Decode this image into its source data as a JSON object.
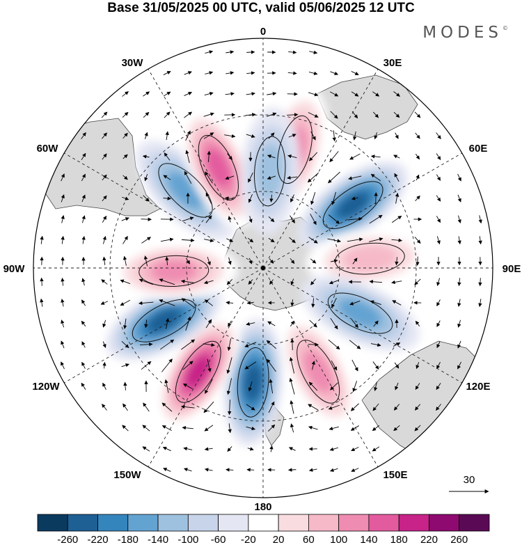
{
  "title": "Base 31/05/2025 00 UTC, valid 05/06/2025 12 UTC",
  "logo": "MODES",
  "logo_mark": "©",
  "longitude_labels": [
    {
      "key": "0",
      "text": "0"
    },
    {
      "key": "30E",
      "text": "30E"
    },
    {
      "key": "60E",
      "text": "60E"
    },
    {
      "key": "90E",
      "text": "90E"
    },
    {
      "key": "120E",
      "text": "120E"
    },
    {
      "key": "150E",
      "text": "150E"
    },
    {
      "key": "180",
      "text": "180"
    },
    {
      "key": "150W",
      "text": "150W"
    },
    {
      "key": "120W",
      "text": "120W"
    },
    {
      "key": "90W",
      "text": "90W"
    },
    {
      "key": "60W",
      "text": "60W"
    },
    {
      "key": "30W",
      "text": "30W"
    }
  ],
  "vector_reference": "30",
  "colorbar": {
    "ticks": [
      "-260",
      "-220",
      "-180",
      "-140",
      "-100",
      "-60",
      "-20",
      "20",
      "60",
      "100",
      "140",
      "180",
      "220",
      "260"
    ],
    "colors": [
      "#0b3a5f",
      "#1e5f94",
      "#3585bd",
      "#63a3d2",
      "#9ec1df",
      "#c7d4ea",
      "#e4e6f3",
      "#ffffff",
      "#f9dcdf",
      "#f6b9c8",
      "#ef8cb1",
      "#e35b9f",
      "#c72388",
      "#8e0a70",
      "#5a0a55"
    ]
  },
  "anomalies": [
    {
      "name": "pos-atlantic-15e",
      "lon": 15,
      "lat": -42,
      "value": 140
    },
    {
      "name": "neg-indian-55e",
      "lon": 55,
      "lat": -47,
      "value": -220
    },
    {
      "name": "pos-indian-85e",
      "lon": 85,
      "lat": -48,
      "value": 100
    },
    {
      "name": "neg-australia-115e",
      "lon": 115,
      "lat": -48,
      "value": -140
    },
    {
      "name": "pos-tasman-150e",
      "lon": 152,
      "lat": -44,
      "value": 140
    },
    {
      "name": "neg-pacific-175w",
      "lon": -175,
      "lat": -45,
      "value": -220
    },
    {
      "name": "pos-pacific-150w",
      "lon": -148,
      "lat": -42,
      "value": 220
    },
    {
      "name": "neg-pacific-120w",
      "lon": -118,
      "lat": -46,
      "value": -220
    },
    {
      "name": "pos-pacific-90w",
      "lon": -92,
      "lat": -55,
      "value": 140
    },
    {
      "name": "neg-atlantic-45w",
      "lon": -45,
      "lat": -47,
      "value": -140
    },
    {
      "name": "pos-atlantic-25w",
      "lon": -24,
      "lat": -47,
      "value": 180
    },
    {
      "name": "neg-atlantic-5e",
      "lon": 4,
      "lat": -52,
      "value": -100
    }
  ]
}
